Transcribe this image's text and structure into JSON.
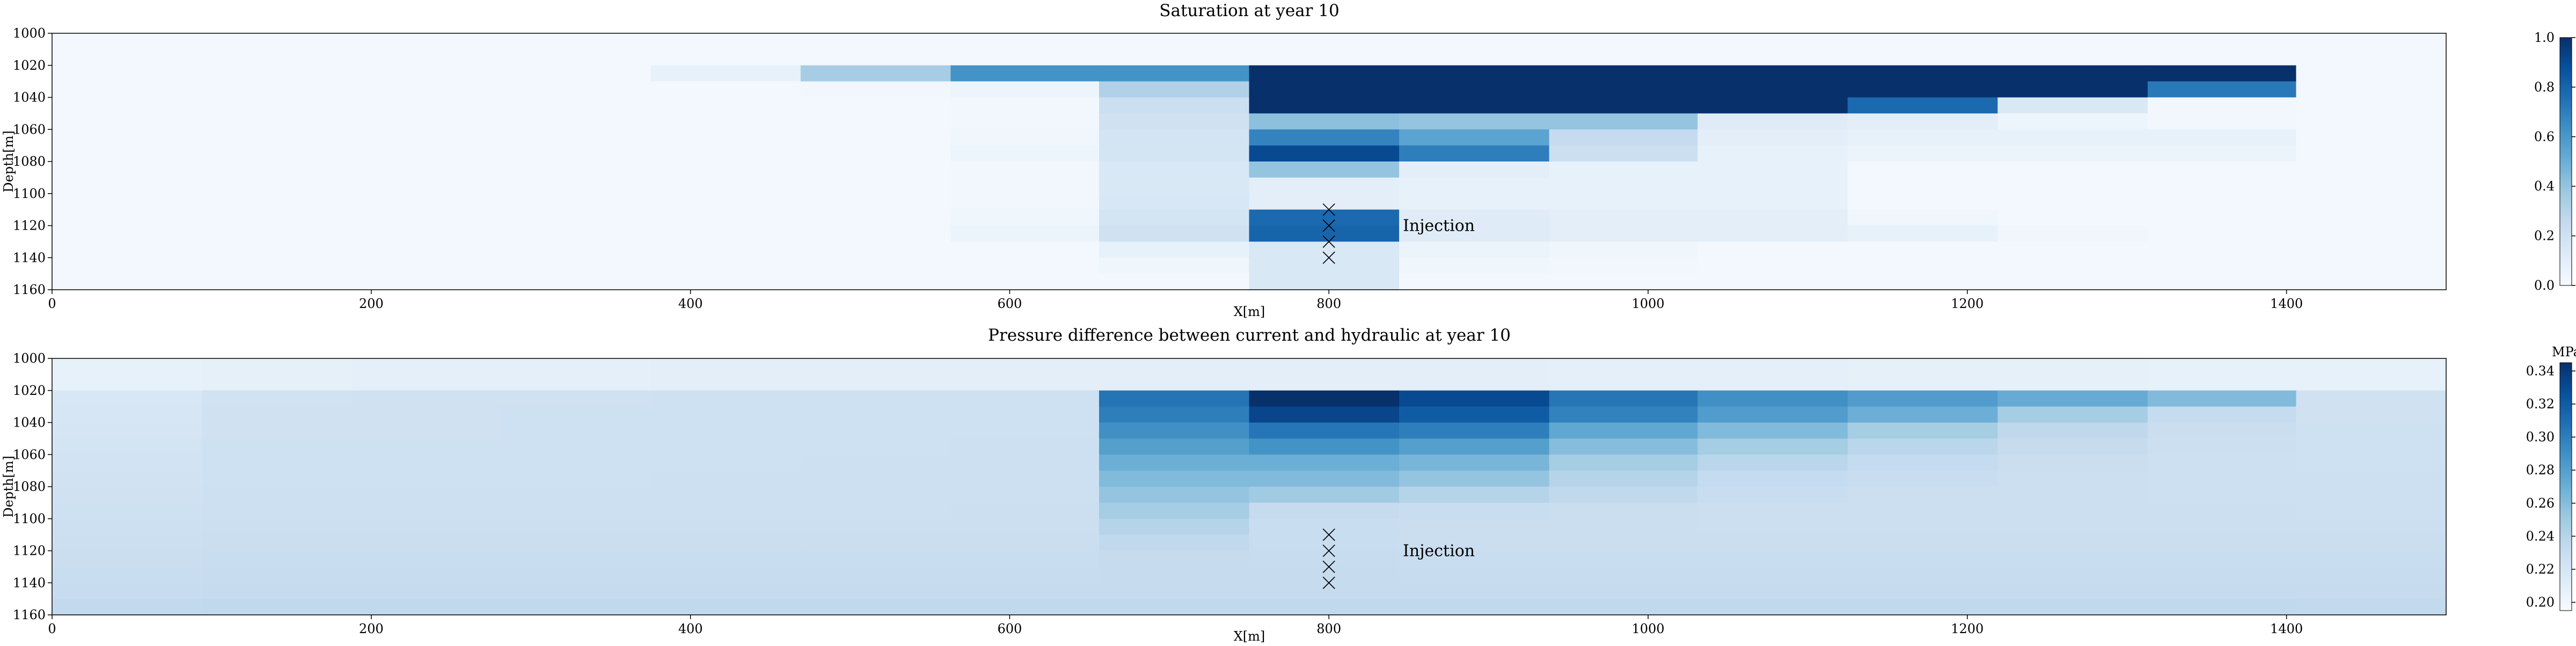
{
  "charts": [
    {
      "id": "saturation",
      "title": "Saturation at year 10",
      "xlabel": "X[m]",
      "ylabel": "Depth[m]",
      "xticks": [
        0,
        200,
        400,
        600,
        800,
        1000,
        1200,
        1400
      ],
      "yticks": [
        1000,
        1020,
        1040,
        1060,
        1080,
        1100,
        1120,
        1140,
        1160
      ],
      "colorbar": {
        "unit": "",
        "ticks": [
          "0.0",
          "0.2",
          "0.4",
          "0.6",
          "0.8",
          "1.0"
        ]
      },
      "annotation": "Injection"
    },
    {
      "id": "pressure",
      "title": "Pressure difference between current and hydraulic at year 10",
      "xlabel": "X[m]",
      "ylabel": "Depth[m]",
      "xticks": [
        0,
        200,
        400,
        600,
        800,
        1000,
        1200,
        1400
      ],
      "yticks": [
        1000,
        1020,
        1040,
        1060,
        1080,
        1100,
        1120,
        1140,
        1160
      ],
      "colorbar": {
        "unit": "MPa",
        "ticks": [
          "0.20",
          "0.22",
          "0.24",
          "0.26",
          "0.28",
          "0.30",
          "0.32",
          "0.34"
        ]
      },
      "annotation": "Injection"
    }
  ],
  "chart_data": [
    {
      "type": "heatmap",
      "title": "Saturation at year 10",
      "xlabel": "X[m]",
      "ylabel": "Depth[m]",
      "xlim": [
        0,
        1500
      ],
      "ylim": [
        1160,
        1000
      ],
      "colormap": "Blues",
      "vmin": 0.0,
      "vmax": 1.0,
      "x_edges": [
        0,
        94,
        188,
        281,
        375,
        469,
        563,
        656,
        750,
        844,
        938,
        1031,
        1125,
        1219,
        1313,
        1406,
        1500
      ],
      "z_edges": [
        1000,
        1020,
        1030,
        1040,
        1050,
        1060,
        1070,
        1080,
        1090,
        1100,
        1110,
        1120,
        1130,
        1140,
        1150,
        1160
      ],
      "values": [
        [
          0.02,
          0.02,
          0.02,
          0.02,
          0.02,
          0.02,
          0.02,
          0.02,
          0.02,
          0.02,
          0.02,
          0.02,
          0.02,
          0.02,
          0.02,
          0.02
        ],
        [
          0.02,
          0.02,
          0.02,
          0.02,
          0.08,
          0.35,
          0.62,
          0.62,
          1.0,
          1.0,
          1.0,
          1.0,
          1.0,
          1.0,
          1.0,
          0.02
        ],
        [
          0.02,
          0.02,
          0.02,
          0.02,
          0.02,
          0.03,
          0.05,
          0.32,
          1.0,
          1.0,
          1.0,
          1.0,
          1.0,
          1.0,
          0.72,
          0.02
        ],
        [
          0.02,
          0.02,
          0.02,
          0.02,
          0.02,
          0.02,
          0.03,
          0.22,
          1.0,
          1.0,
          1.0,
          1.0,
          0.78,
          0.15,
          0.03,
          0.02
        ],
        [
          0.02,
          0.02,
          0.02,
          0.02,
          0.02,
          0.02,
          0.03,
          0.2,
          0.42,
          0.4,
          0.4,
          0.12,
          0.1,
          0.05,
          0.03,
          0.02
        ],
        [
          0.02,
          0.02,
          0.02,
          0.02,
          0.02,
          0.02,
          0.04,
          0.18,
          0.68,
          0.55,
          0.25,
          0.1,
          0.08,
          0.08,
          0.08,
          0.02
        ],
        [
          0.02,
          0.02,
          0.02,
          0.02,
          0.02,
          0.02,
          0.05,
          0.18,
          0.9,
          0.7,
          0.22,
          0.08,
          0.06,
          0.06,
          0.06,
          0.02
        ],
        [
          0.02,
          0.02,
          0.02,
          0.02,
          0.02,
          0.02,
          0.03,
          0.15,
          0.4,
          0.1,
          0.08,
          0.08,
          0.02,
          0.02,
          0.02,
          0.02
        ],
        [
          0.02,
          0.02,
          0.02,
          0.02,
          0.02,
          0.02,
          0.03,
          0.15,
          0.1,
          0.08,
          0.08,
          0.08,
          0.02,
          0.02,
          0.02,
          0.02
        ],
        [
          0.02,
          0.02,
          0.02,
          0.02,
          0.02,
          0.02,
          0.03,
          0.16,
          0.1,
          0.08,
          0.08,
          0.08,
          0.02,
          0.02,
          0.02,
          0.02
        ],
        [
          0.02,
          0.02,
          0.02,
          0.02,
          0.02,
          0.02,
          0.04,
          0.18,
          0.78,
          0.12,
          0.1,
          0.1,
          0.04,
          0.02,
          0.02,
          0.02
        ],
        [
          0.02,
          0.02,
          0.02,
          0.02,
          0.02,
          0.02,
          0.06,
          0.2,
          0.8,
          0.12,
          0.1,
          0.1,
          0.08,
          0.04,
          0.02,
          0.02
        ],
        [
          0.02,
          0.02,
          0.02,
          0.02,
          0.02,
          0.02,
          0.02,
          0.08,
          0.15,
          0.06,
          0.04,
          0.02,
          0.02,
          0.02,
          0.02,
          0.02
        ],
        [
          0.02,
          0.02,
          0.02,
          0.02,
          0.02,
          0.02,
          0.02,
          0.04,
          0.15,
          0.04,
          0.03,
          0.02,
          0.02,
          0.02,
          0.02,
          0.02
        ],
        [
          0.02,
          0.02,
          0.02,
          0.02,
          0.02,
          0.02,
          0.02,
          0.02,
          0.15,
          0.02,
          0.02,
          0.02,
          0.02,
          0.02,
          0.02,
          0.02
        ]
      ],
      "annotations": [
        {
          "text": "Injection",
          "x": 845,
          "y": 1120
        }
      ],
      "markers": {
        "symbol": "x",
        "x": 800,
        "y": [
          1110,
          1120,
          1130,
          1140
        ]
      }
    },
    {
      "type": "heatmap",
      "title": "Pressure difference between current and hydraulic at year 10",
      "xlabel": "X[m]",
      "ylabel": "Depth[m]",
      "colorbar_label": "MPa",
      "xlim": [
        0,
        1500
      ],
      "ylim": [
        1160,
        1000
      ],
      "colormap": "Blues",
      "vmin": 0.195,
      "vmax": 0.345,
      "x_edges": [
        0,
        94,
        188,
        281,
        375,
        469,
        563,
        656,
        750,
        844,
        938,
        1031,
        1125,
        1219,
        1313,
        1406,
        1500
      ],
      "z_edges": [
        1000,
        1020,
        1030,
        1040,
        1050,
        1060,
        1070,
        1080,
        1090,
        1100,
        1110,
        1120,
        1130,
        1140,
        1150,
        1160
      ],
      "values": [
        [
          0.207,
          0.208,
          0.209,
          0.209,
          0.21,
          0.21,
          0.21,
          0.21,
          0.21,
          0.21,
          0.209,
          0.209,
          0.208,
          0.208,
          0.207,
          0.207
        ],
        [
          0.219,
          0.224,
          0.225,
          0.225,
          0.226,
          0.226,
          0.226,
          0.306,
          0.345,
          0.33,
          0.305,
          0.29,
          0.282,
          0.272,
          0.262,
          0.225
        ],
        [
          0.22,
          0.225,
          0.225,
          0.226,
          0.226,
          0.226,
          0.226,
          0.3,
          0.333,
          0.32,
          0.298,
          0.282,
          0.27,
          0.248,
          0.233,
          0.225
        ],
        [
          0.221,
          0.225,
          0.225,
          0.226,
          0.226,
          0.226,
          0.226,
          0.29,
          0.305,
          0.3,
          0.275,
          0.262,
          0.248,
          0.236,
          0.229,
          0.226
        ],
        [
          0.222,
          0.226,
          0.226,
          0.226,
          0.226,
          0.226,
          0.227,
          0.28,
          0.288,
          0.28,
          0.26,
          0.248,
          0.238,
          0.232,
          0.228,
          0.226
        ],
        [
          0.223,
          0.226,
          0.226,
          0.226,
          0.226,
          0.227,
          0.227,
          0.27,
          0.27,
          0.265,
          0.248,
          0.238,
          0.233,
          0.229,
          0.227,
          0.226
        ],
        [
          0.224,
          0.226,
          0.226,
          0.226,
          0.227,
          0.227,
          0.227,
          0.262,
          0.262,
          0.255,
          0.24,
          0.233,
          0.23,
          0.228,
          0.227,
          0.227
        ],
        [
          0.225,
          0.227,
          0.227,
          0.227,
          0.227,
          0.227,
          0.227,
          0.255,
          0.25,
          0.24,
          0.235,
          0.23,
          0.228,
          0.228,
          0.227,
          0.227
        ],
        [
          0.226,
          0.227,
          0.227,
          0.227,
          0.227,
          0.227,
          0.228,
          0.248,
          0.232,
          0.23,
          0.229,
          0.228,
          0.228,
          0.228,
          0.228,
          0.227
        ],
        [
          0.227,
          0.228,
          0.228,
          0.228,
          0.228,
          0.228,
          0.228,
          0.24,
          0.23,
          0.229,
          0.229,
          0.228,
          0.228,
          0.228,
          0.228,
          0.228
        ],
        [
          0.228,
          0.229,
          0.229,
          0.229,
          0.229,
          0.229,
          0.229,
          0.235,
          0.23,
          0.229,
          0.229,
          0.229,
          0.229,
          0.229,
          0.229,
          0.229
        ],
        [
          0.229,
          0.23,
          0.23,
          0.23,
          0.23,
          0.23,
          0.23,
          0.232,
          0.231,
          0.23,
          0.23,
          0.23,
          0.23,
          0.23,
          0.23,
          0.23
        ],
        [
          0.23,
          0.231,
          0.231,
          0.231,
          0.231,
          0.231,
          0.231,
          0.232,
          0.232,
          0.231,
          0.231,
          0.231,
          0.231,
          0.231,
          0.231,
          0.231
        ],
        [
          0.231,
          0.232,
          0.232,
          0.232,
          0.232,
          0.232,
          0.232,
          0.232,
          0.232,
          0.232,
          0.232,
          0.232,
          0.232,
          0.232,
          0.232,
          0.232
        ],
        [
          0.234,
          0.235,
          0.235,
          0.235,
          0.235,
          0.235,
          0.235,
          0.235,
          0.235,
          0.235,
          0.235,
          0.235,
          0.235,
          0.235,
          0.235,
          0.234
        ]
      ],
      "annotations": [
        {
          "text": "Injection",
          "x": 845,
          "y": 1120
        }
      ],
      "markers": {
        "symbol": "x",
        "x": 800,
        "y": [
          1110,
          1120,
          1130,
          1140
        ]
      }
    }
  ]
}
